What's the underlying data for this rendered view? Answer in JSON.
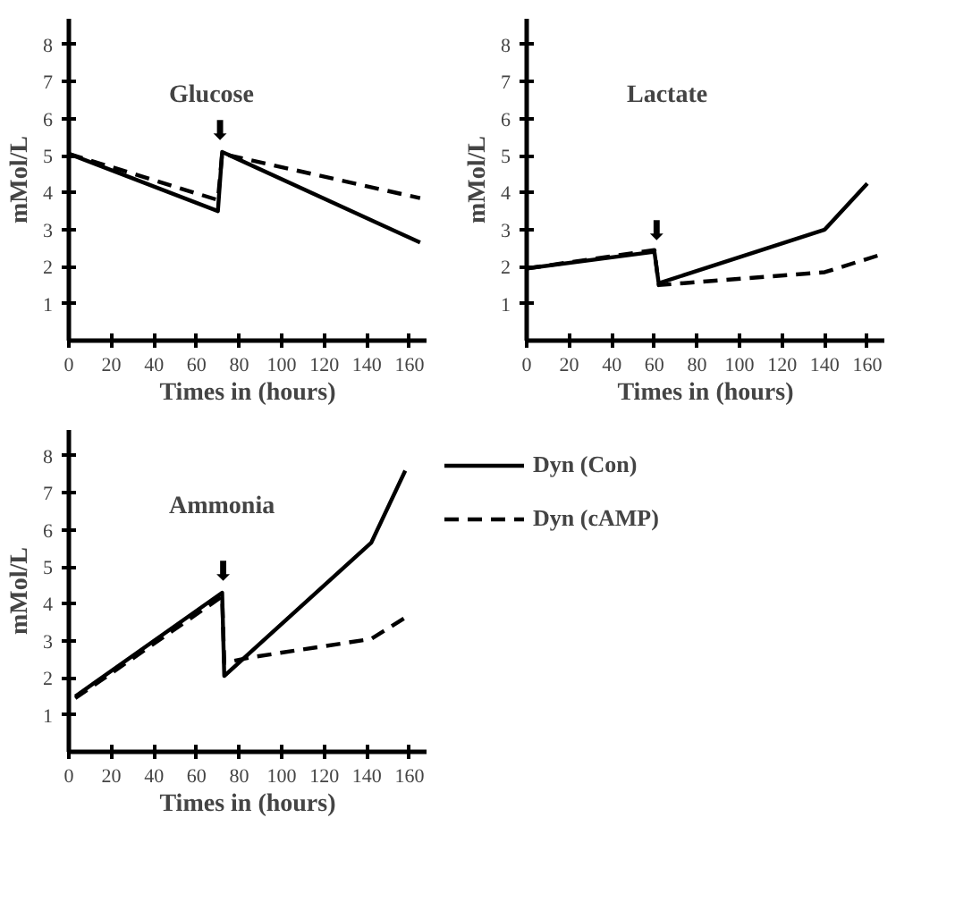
{
  "chart_data": [
    {
      "type": "line",
      "title": "Glucose",
      "xlabel": "Times in (hours)",
      "ylabel": "mMol/L",
      "xlim": [
        0,
        168
      ],
      "ylim": [
        0,
        8.7
      ],
      "xticks": [
        0,
        20,
        40,
        60,
        80,
        100,
        120,
        140,
        160
      ],
      "yticks": [
        1,
        2,
        3,
        4,
        5,
        6,
        7,
        8
      ],
      "grid": false,
      "marker": "none",
      "annotations": [
        "⬇"
      ],
      "series": [
        {
          "color": "#000000",
          "line_style": "solid",
          "x": [
            0,
            70,
            72,
            165
          ],
          "values": [
            5.05,
            3.5,
            5.1,
            2.65
          ]
        },
        {
          "color": "#000000",
          "line_style": "dashed",
          "x": [
            0,
            70,
            72,
            165
          ],
          "values": [
            5.05,
            3.8,
            5.05,
            3.85
          ]
        }
      ]
    },
    {
      "type": "line",
      "title": "Lactate",
      "xlabel": "Times in (hours)",
      "ylabel": "mMol/L",
      "xlim": [
        0,
        168
      ],
      "ylim": [
        0,
        8.7
      ],
      "xticks": [
        0,
        20,
        40,
        60,
        80,
        100,
        120,
        140,
        160
      ],
      "yticks": [
        1,
        2,
        3,
        4,
        5,
        6,
        7,
        8
      ],
      "grid": false,
      "marker": "none",
      "annotations": [
        "⬇"
      ],
      "series": [
        {
          "color": "#000000",
          "line_style": "solid",
          "x": [
            0,
            60,
            62,
            140,
            160
          ],
          "values": [
            1.95,
            2.4,
            1.55,
            3.0,
            4.25
          ]
        },
        {
          "color": "#000000",
          "line_style": "dashed",
          "x": [
            0,
            60,
            62,
            140,
            165
          ],
          "values": [
            1.95,
            2.45,
            1.5,
            1.85,
            2.3
          ]
        }
      ]
    },
    {
      "type": "line",
      "title": "Ammonia",
      "xlabel": "Times in (hours)",
      "ylabel": "mMol/L",
      "xlim": [
        0,
        168
      ],
      "ylim": [
        0,
        8.7
      ],
      "xticks": [
        0,
        20,
        40,
        60,
        80,
        100,
        120,
        140,
        160
      ],
      "yticks": [
        1,
        2,
        3,
        4,
        5,
        6,
        7,
        8
      ],
      "grid": false,
      "marker": "none",
      "legend": "right",
      "annotations": [
        "⬇"
      ],
      "series": [
        {
          "name": "Dyn (Con)",
          "color": "#000000",
          "line_style": "solid",
          "x": [
            3,
            72,
            73,
            142,
            158
          ],
          "values": [
            1.5,
            4.3,
            2.05,
            5.65,
            7.6
          ]
        },
        {
          "name": "Dyn (cAMP)",
          "color": "#000000",
          "line_style": "dashed",
          "x": [
            3,
            72,
            73,
            85,
            142,
            160
          ],
          "values": [
            1.45,
            4.2,
            2.4,
            2.55,
            3.05,
            3.7
          ]
        }
      ]
    }
  ]
}
